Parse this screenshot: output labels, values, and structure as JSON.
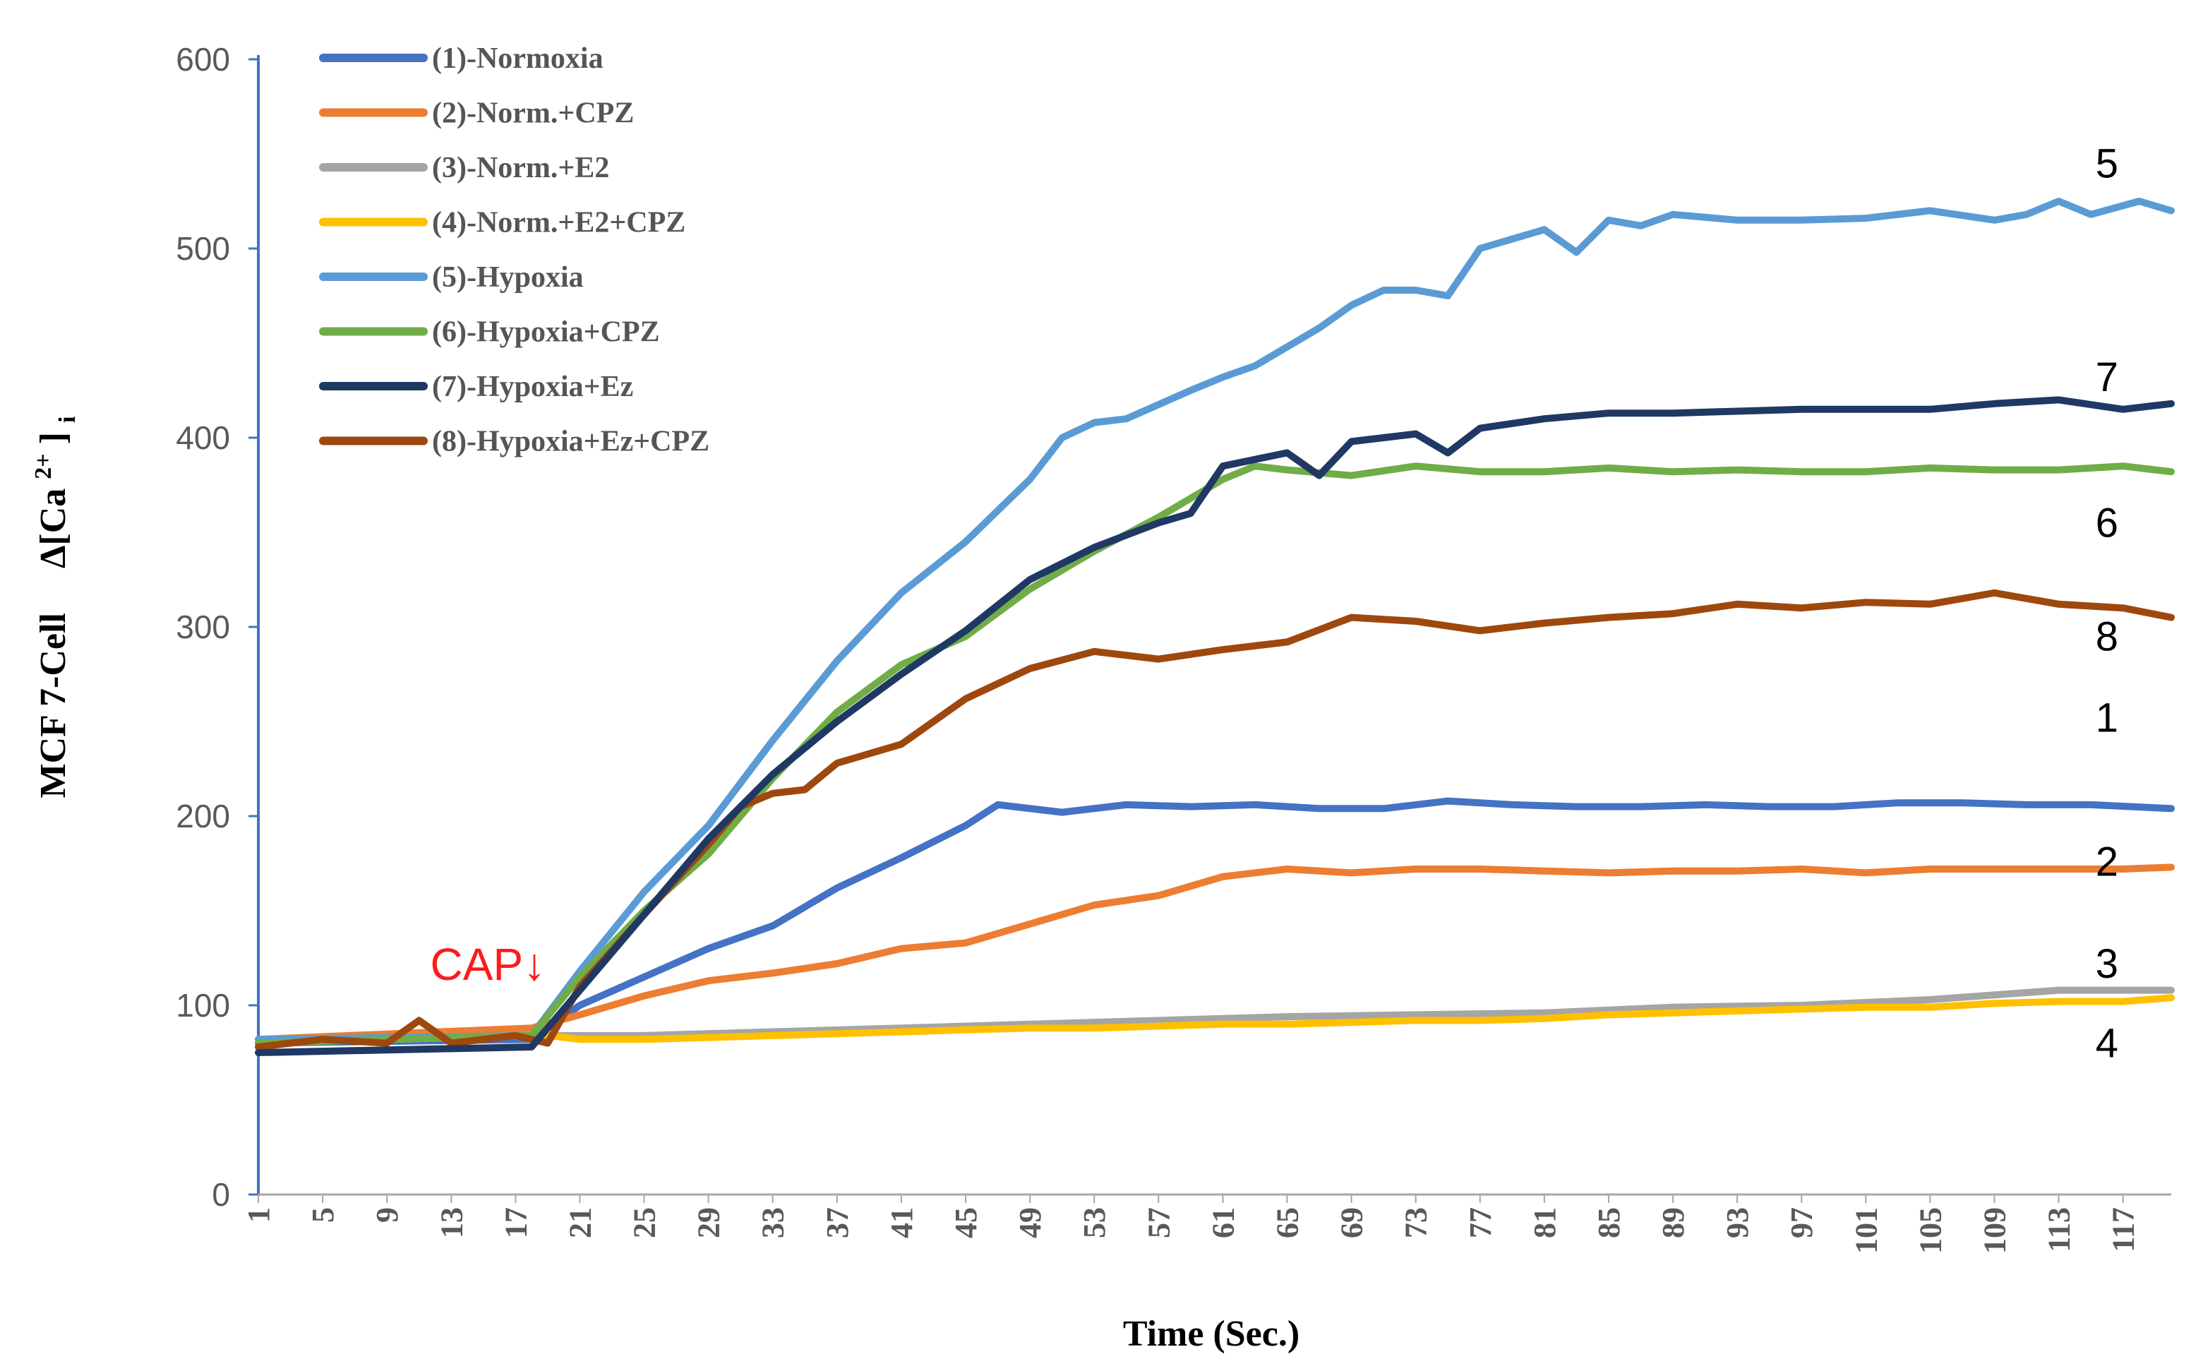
{
  "chart_data": {
    "type": "line",
    "title": "",
    "xlabel": "Time (Sec.)",
    "ylabel_prefix": "MCF 7-Cell",
    "ylabel_delta": "Δ[Ca",
    "ylabel_sup": "2+",
    "ylabel_close": "]",
    "ylabel_sub": "i",
    "xlim": [
      1,
      120
    ],
    "ylim": [
      0,
      600
    ],
    "y_ticks": [
      0,
      100,
      200,
      300,
      400,
      500,
      600
    ],
    "x_ticks": [
      1,
      5,
      9,
      13,
      17,
      21,
      25,
      29,
      33,
      37,
      41,
      45,
      49,
      53,
      57,
      61,
      65,
      69,
      73,
      77,
      81,
      85,
      89,
      93,
      97,
      101,
      105,
      109,
      113,
      117
    ],
    "grid": false,
    "legend_position": "top-left",
    "annotation": {
      "text": "CAP↓",
      "x": 18,
      "y": 88,
      "color": "#ff1a1a"
    },
    "series": [
      {
        "name": "(1)-Normoxia",
        "end_label": "1",
        "color": "#4472c4",
        "points": [
          [
            1,
            80
          ],
          [
            18,
            82
          ],
          [
            21,
            100
          ],
          [
            25,
            115
          ],
          [
            29,
            130
          ],
          [
            33,
            142
          ],
          [
            37,
            162
          ],
          [
            41,
            178
          ],
          [
            45,
            195
          ],
          [
            47,
            206
          ],
          [
            51,
            202
          ],
          [
            55,
            206
          ],
          [
            59,
            205
          ],
          [
            63,
            206
          ],
          [
            67,
            204
          ],
          [
            71,
            204
          ],
          [
            75,
            208
          ],
          [
            79,
            206
          ],
          [
            83,
            205
          ],
          [
            87,
            205
          ],
          [
            91,
            206
          ],
          [
            95,
            205
          ],
          [
            99,
            205
          ],
          [
            103,
            207
          ],
          [
            107,
            207
          ],
          [
            111,
            206
          ],
          [
            115,
            206
          ],
          [
            120,
            204
          ]
        ]
      },
      {
        "name": "(2)-Norm.+CPZ",
        "end_label": "2",
        "color": "#ed7d31",
        "points": [
          [
            1,
            82
          ],
          [
            18,
            88
          ],
          [
            21,
            95
          ],
          [
            25,
            105
          ],
          [
            29,
            113
          ],
          [
            33,
            117
          ],
          [
            37,
            122
          ],
          [
            41,
            130
          ],
          [
            45,
            133
          ],
          [
            49,
            143
          ],
          [
            53,
            153
          ],
          [
            57,
            158
          ],
          [
            61,
            168
          ],
          [
            65,
            172
          ],
          [
            69,
            170
          ],
          [
            73,
            172
          ],
          [
            77,
            172
          ],
          [
            81,
            171
          ],
          [
            85,
            170
          ],
          [
            89,
            171
          ],
          [
            93,
            171
          ],
          [
            97,
            172
          ],
          [
            101,
            170
          ],
          [
            105,
            172
          ],
          [
            109,
            172
          ],
          [
            113,
            172
          ],
          [
            117,
            172
          ],
          [
            120,
            173
          ]
        ]
      },
      {
        "name": "(3)-Norm.+E2",
        "end_label": "3",
        "color": "#a5a5a5",
        "points": [
          [
            1,
            80
          ],
          [
            18,
            84
          ],
          [
            21,
            84
          ],
          [
            25,
            84
          ],
          [
            33,
            86
          ],
          [
            41,
            88
          ],
          [
            49,
            90
          ],
          [
            57,
            92
          ],
          [
            65,
            94
          ],
          [
            73,
            95
          ],
          [
            81,
            96
          ],
          [
            89,
            99
          ],
          [
            97,
            100
          ],
          [
            105,
            103
          ],
          [
            113,
            108
          ],
          [
            120,
            108
          ]
        ]
      },
      {
        "name": "(4)-Norm.+E2+CPZ",
        "end_label": "4",
        "color": "#ffc000",
        "points": [
          [
            1,
            80
          ],
          [
            18,
            85
          ],
          [
            21,
            82
          ],
          [
            25,
            82
          ],
          [
            29,
            83
          ],
          [
            33,
            84
          ],
          [
            37,
            85
          ],
          [
            41,
            86
          ],
          [
            45,
            87
          ],
          [
            49,
            88
          ],
          [
            53,
            88
          ],
          [
            57,
            89
          ],
          [
            61,
            90
          ],
          [
            65,
            90
          ],
          [
            69,
            91
          ],
          [
            73,
            92
          ],
          [
            77,
            92
          ],
          [
            81,
            93
          ],
          [
            85,
            95
          ],
          [
            89,
            96
          ],
          [
            93,
            97
          ],
          [
            97,
            98
          ],
          [
            101,
            99
          ],
          [
            105,
            99
          ],
          [
            109,
            101
          ],
          [
            113,
            102
          ],
          [
            117,
            102
          ],
          [
            120,
            104
          ]
        ]
      },
      {
        "name": "(5)-Hypoxia",
        "end_label": "5",
        "color": "#5b9bd5",
        "points": [
          [
            1,
            82
          ],
          [
            18,
            84
          ],
          [
            21,
            118
          ],
          [
            25,
            160
          ],
          [
            29,
            195
          ],
          [
            33,
            240
          ],
          [
            37,
            282
          ],
          [
            41,
            318
          ],
          [
            45,
            345
          ],
          [
            49,
            378
          ],
          [
            51,
            400
          ],
          [
            53,
            408
          ],
          [
            55,
            410
          ],
          [
            59,
            425
          ],
          [
            61,
            432
          ],
          [
            63,
            438
          ],
          [
            67,
            458
          ],
          [
            69,
            470
          ],
          [
            71,
            478
          ],
          [
            73,
            478
          ],
          [
            75,
            475
          ],
          [
            77,
            500
          ],
          [
            79,
            505
          ],
          [
            81,
            510
          ],
          [
            83,
            498
          ],
          [
            85,
            515
          ],
          [
            87,
            512
          ],
          [
            89,
            518
          ],
          [
            93,
            515
          ],
          [
            97,
            515
          ],
          [
            101,
            516
          ],
          [
            105,
            520
          ],
          [
            109,
            515
          ],
          [
            111,
            518
          ],
          [
            113,
            525
          ],
          [
            115,
            518
          ],
          [
            118,
            525
          ],
          [
            120,
            520
          ]
        ]
      },
      {
        "name": "(6)-Hypoxia+CPZ",
        "end_label": "6",
        "color": "#70ad47",
        "points": [
          [
            1,
            80
          ],
          [
            18,
            84
          ],
          [
            21,
            115
          ],
          [
            25,
            150
          ],
          [
            29,
            180
          ],
          [
            33,
            220
          ],
          [
            37,
            255
          ],
          [
            41,
            280
          ],
          [
            45,
            295
          ],
          [
            49,
            320
          ],
          [
            53,
            340
          ],
          [
            57,
            358
          ],
          [
            61,
            378
          ],
          [
            63,
            385
          ],
          [
            65,
            383
          ],
          [
            69,
            380
          ],
          [
            73,
            385
          ],
          [
            77,
            382
          ],
          [
            81,
            382
          ],
          [
            85,
            384
          ],
          [
            89,
            382
          ],
          [
            93,
            383
          ],
          [
            97,
            382
          ],
          [
            101,
            382
          ],
          [
            105,
            384
          ],
          [
            109,
            383
          ],
          [
            113,
            383
          ],
          [
            117,
            385
          ],
          [
            120,
            382
          ]
        ]
      },
      {
        "name": "(7)-Hypoxia+Ez",
        "end_label": "7",
        "color": "#203864",
        "points": [
          [
            1,
            75
          ],
          [
            18,
            78
          ],
          [
            21,
            108
          ],
          [
            25,
            148
          ],
          [
            29,
            188
          ],
          [
            33,
            222
          ],
          [
            37,
            250
          ],
          [
            41,
            275
          ],
          [
            45,
            298
          ],
          [
            49,
            325
          ],
          [
            53,
            342
          ],
          [
            57,
            355
          ],
          [
            59,
            360
          ],
          [
            61,
            385
          ],
          [
            65,
            392
          ],
          [
            67,
            380
          ],
          [
            69,
            398
          ],
          [
            73,
            402
          ],
          [
            75,
            392
          ],
          [
            77,
            405
          ],
          [
            81,
            410
          ],
          [
            85,
            413
          ],
          [
            89,
            413
          ],
          [
            93,
            414
          ],
          [
            97,
            415
          ],
          [
            101,
            415
          ],
          [
            105,
            415
          ],
          [
            109,
            418
          ],
          [
            113,
            420
          ],
          [
            117,
            415
          ],
          [
            120,
            418
          ]
        ]
      },
      {
        "name": "(8)-Hypoxia+Ez+CPZ",
        "end_label": "8",
        "color": "#9e480e",
        "points": [
          [
            1,
            78
          ],
          [
            5,
            82
          ],
          [
            9,
            80
          ],
          [
            11,
            92
          ],
          [
            13,
            80
          ],
          [
            17,
            84
          ],
          [
            19,
            80
          ],
          [
            21,
            110
          ],
          [
            25,
            148
          ],
          [
            29,
            185
          ],
          [
            31,
            205
          ],
          [
            33,
            212
          ],
          [
            35,
            214
          ],
          [
            37,
            228
          ],
          [
            41,
            238
          ],
          [
            45,
            262
          ],
          [
            49,
            278
          ],
          [
            53,
            287
          ],
          [
            57,
            283
          ],
          [
            61,
            288
          ],
          [
            65,
            292
          ],
          [
            69,
            305
          ],
          [
            73,
            303
          ],
          [
            77,
            298
          ],
          [
            81,
            302
          ],
          [
            85,
            305
          ],
          [
            89,
            307
          ],
          [
            93,
            312
          ],
          [
            97,
            310
          ],
          [
            101,
            313
          ],
          [
            105,
            312
          ],
          [
            109,
            318
          ],
          [
            113,
            312
          ],
          [
            117,
            310
          ],
          [
            120,
            305
          ]
        ]
      }
    ]
  }
}
